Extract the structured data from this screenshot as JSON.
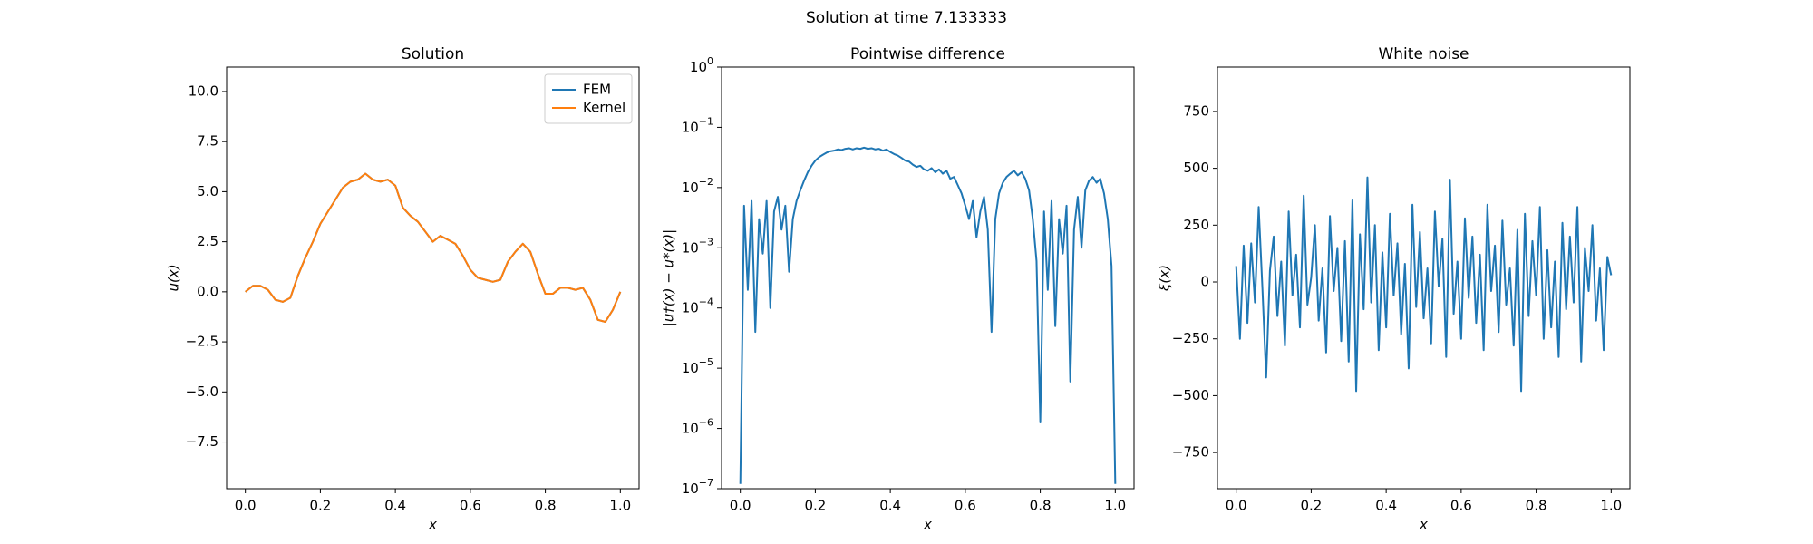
{
  "title": "Solution at time 7.133333",
  "chart_data": [
    {
      "type": "line",
      "title": "Solution",
      "xlabel": "x",
      "ylabel": "u(x)",
      "legend": "upper right",
      "xlim": [
        -0.05,
        1.05
      ],
      "ylim": [
        -9.83,
        11.22
      ],
      "xticks": [
        {
          "value": 0,
          "label": "0.0"
        },
        {
          "value": 0.2,
          "label": "0.2"
        },
        {
          "value": 0.4,
          "label": "0.4"
        },
        {
          "value": 0.6,
          "label": "0.6"
        },
        {
          "value": 0.8,
          "label": "0.8"
        },
        {
          "value": 1,
          "label": "1.0"
        }
      ],
      "yticks": [
        {
          "value": -7.5,
          "label": "−7.5"
        },
        {
          "value": -5,
          "label": "−5.0"
        },
        {
          "value": -2.5,
          "label": "−2.5"
        },
        {
          "value": 0,
          "label": "0.0"
        },
        2.5,
        {
          "value": 5,
          "label": "5.0"
        },
        7.5,
        {
          "value": 10,
          "label": "10.0"
        }
      ],
      "x": [
        0,
        0.02,
        0.04,
        0.06,
        0.08,
        0.1,
        0.12,
        0.14,
        0.16,
        0.18,
        0.2,
        0.22,
        0.24,
        0.26,
        0.28,
        0.3,
        0.32,
        0.34,
        0.36,
        0.38,
        0.4,
        0.42,
        0.44,
        0.46,
        0.48,
        0.5,
        0.52,
        0.54,
        0.56,
        0.58,
        0.6,
        0.62,
        0.64,
        0.66,
        0.68,
        0.7,
        0.72,
        0.74,
        0.76,
        0.78,
        0.8,
        0.82,
        0.84,
        0.86,
        0.88,
        0.9,
        0.92,
        0.94,
        0.96,
        0.98,
        1
      ],
      "series": [
        {
          "name": "FEM",
          "color": "#1f77b4",
          "values": [
            0,
            0.3,
            0.3,
            0.1,
            -0.4,
            -0.5,
            -0.3,
            0.8,
            1.7,
            2.5,
            3.4,
            4.0,
            4.6,
            5.2,
            5.5,
            5.6,
            5.9,
            5.6,
            5.5,
            5.6,
            5.3,
            4.2,
            3.8,
            3.5,
            3.0,
            2.5,
            2.8,
            2.6,
            2.4,
            1.8,
            1.1,
            0.7,
            0.6,
            0.5,
            0.6,
            1.5,
            2.0,
            2.4,
            2.0,
            0.9,
            -0.1,
            -0.1,
            0.2,
            0.2,
            0.1,
            0.2,
            -0.4,
            -1.4,
            -1.5,
            -0.9,
            0
          ]
        },
        {
          "name": "Kernel",
          "color": "#ff7f0e",
          "values": [
            0,
            0.3,
            0.3,
            0.1,
            -0.4,
            -0.5,
            -0.3,
            0.8,
            1.7,
            2.5,
            3.4,
            4.0,
            4.6,
            5.2,
            5.5,
            5.6,
            5.9,
            5.6,
            5.5,
            5.6,
            5.3,
            4.2,
            3.8,
            3.5,
            3.0,
            2.5,
            2.8,
            2.6,
            2.4,
            1.8,
            1.1,
            0.7,
            0.6,
            0.5,
            0.6,
            1.5,
            2.0,
            2.4,
            2.0,
            0.9,
            -0.1,
            -0.1,
            0.2,
            0.2,
            0.1,
            0.2,
            -0.4,
            -1.4,
            -1.5,
            -0.9,
            0
          ]
        }
      ]
    },
    {
      "type": "line",
      "title": "Pointwise difference",
      "xlabel": "x",
      "ylabel": "|u†(x) − u*(x)|",
      "log_y": true,
      "xlim": [
        -0.05,
        1.05
      ],
      "ylim": [
        1e-07,
        1
      ],
      "xticks": [
        {
          "value": 0,
          "label": "0.0"
        },
        {
          "value": 0.2,
          "label": "0.2"
        },
        {
          "value": 0.4,
          "label": "0.4"
        },
        {
          "value": 0.6,
          "label": "0.6"
        },
        {
          "value": 0.8,
          "label": "0.8"
        },
        {
          "value": 1,
          "label": "1.0"
        }
      ],
      "yticks": [
        {
          "value": 1e-07,
          "label": "10",
          "exponent": "−7"
        },
        {
          "value": 1e-06,
          "label": "10",
          "exponent": "−6"
        },
        {
          "value": 1e-05,
          "label": "10",
          "exponent": "−5"
        },
        {
          "value": 0.0001,
          "label": "10",
          "exponent": "−4"
        },
        {
          "value": 0.001,
          "label": "10",
          "exponent": "−3"
        },
        {
          "value": 0.01,
          "label": "10",
          "exponent": "−2"
        },
        {
          "value": 0.1,
          "label": "10",
          "exponent": "−1"
        },
        {
          "value": 1,
          "label": "10",
          "exponent": "0"
        }
      ],
      "x": [
        0,
        0.01,
        0.02,
        0.03,
        0.04,
        0.05,
        0.06,
        0.07,
        0.08,
        0.09,
        0.1,
        0.11,
        0.12,
        0.13,
        0.14,
        0.15,
        0.16,
        0.17,
        0.18,
        0.19,
        0.2,
        0.21,
        0.22,
        0.23,
        0.24,
        0.25,
        0.26,
        0.27,
        0.28,
        0.29,
        0.3,
        0.31,
        0.32,
        0.33,
        0.34,
        0.35,
        0.36,
        0.37,
        0.38,
        0.39,
        0.4,
        0.41,
        0.42,
        0.43,
        0.44,
        0.45,
        0.46,
        0.47,
        0.48,
        0.49,
        0.5,
        0.51,
        0.52,
        0.53,
        0.54,
        0.55,
        0.56,
        0.57,
        0.58,
        0.59,
        0.6,
        0.61,
        0.62,
        0.63,
        0.64,
        0.65,
        0.66,
        0.67,
        0.68,
        0.69,
        0.7,
        0.71,
        0.72,
        0.73,
        0.74,
        0.75,
        0.76,
        0.77,
        0.78,
        0.79,
        0.8,
        0.81,
        0.82,
        0.83,
        0.84,
        0.85,
        0.86,
        0.87,
        0.88,
        0.89,
        0.9,
        0.91,
        0.92,
        0.93,
        0.94,
        0.95,
        0.96,
        0.97,
        0.98,
        0.99,
        1
      ],
      "series": [
        {
          "name": "difference",
          "color": "#1f77b4",
          "values": [
            1.2e-07,
            0.005,
            0.0002,
            0.006,
            4e-05,
            0.003,
            0.0008,
            0.006,
            0.0001,
            0.004,
            0.007,
            0.002,
            0.005,
            0.0004,
            0.003,
            0.006,
            0.009,
            0.013,
            0.018,
            0.023,
            0.028,
            0.032,
            0.035,
            0.038,
            0.04,
            0.041,
            0.043,
            0.042,
            0.044,
            0.045,
            0.043,
            0.045,
            0.044,
            0.046,
            0.044,
            0.045,
            0.043,
            0.044,
            0.041,
            0.043,
            0.039,
            0.036,
            0.034,
            0.031,
            0.028,
            0.027,
            0.024,
            0.022,
            0.023,
            0.02,
            0.019,
            0.021,
            0.018,
            0.02,
            0.017,
            0.019,
            0.014,
            0.015,
            0.011,
            0.008,
            0.005,
            0.003,
            0.006,
            0.0015,
            0.004,
            0.007,
            0.002,
            4e-05,
            0.003,
            0.008,
            0.012,
            0.015,
            0.017,
            0.019,
            0.016,
            0.018,
            0.014,
            0.009,
            0.003,
            0.0006,
            1.3e-06,
            0.004,
            0.0002,
            0.006,
            5e-05,
            0.003,
            0.0008,
            0.005,
            6e-06,
            0.002,
            0.007,
            0.001,
            0.009,
            0.013,
            0.015,
            0.012,
            0.014,
            0.008,
            0.003,
            0.0005,
            1.2e-07
          ]
        }
      ]
    },
    {
      "type": "line",
      "title": "White noise",
      "xlabel": "x",
      "ylabel": "ξ(x)",
      "xlim": [
        -0.05,
        1.05
      ],
      "ylim": [
        -909,
        945
      ],
      "xticks": [
        {
          "value": 0,
          "label": "0.0"
        },
        {
          "value": 0.2,
          "label": "0.2"
        },
        {
          "value": 0.4,
          "label": "0.4"
        },
        {
          "value": 0.6,
          "label": "0.6"
        },
        {
          "value": 0.8,
          "label": "0.8"
        },
        {
          "value": 1,
          "label": "1.0"
        }
      ],
      "yticks": [
        {
          "value": -750,
          "label": "−750"
        },
        {
          "value": -500,
          "label": "−500"
        },
        {
          "value": -250,
          "label": "−250"
        },
        0,
        250,
        500,
        750
      ],
      "x": [
        0,
        0.01,
        0.02,
        0.03,
        0.04,
        0.05,
        0.06,
        0.07,
        0.08,
        0.09,
        0.1,
        0.11,
        0.12,
        0.13,
        0.14,
        0.15,
        0.16,
        0.17,
        0.18,
        0.19,
        0.2,
        0.21,
        0.22,
        0.23,
        0.24,
        0.25,
        0.26,
        0.27,
        0.28,
        0.29,
        0.3,
        0.31,
        0.32,
        0.33,
        0.34,
        0.35,
        0.36,
        0.37,
        0.38,
        0.39,
        0.4,
        0.41,
        0.42,
        0.43,
        0.44,
        0.45,
        0.46,
        0.47,
        0.48,
        0.49,
        0.5,
        0.51,
        0.52,
        0.53,
        0.54,
        0.55,
        0.56,
        0.57,
        0.58,
        0.59,
        0.6,
        0.61,
        0.62,
        0.63,
        0.64,
        0.65,
        0.66,
        0.67,
        0.68,
        0.69,
        0.7,
        0.71,
        0.72,
        0.73,
        0.74,
        0.75,
        0.76,
        0.77,
        0.78,
        0.79,
        0.8,
        0.81,
        0.82,
        0.83,
        0.84,
        0.85,
        0.86,
        0.87,
        0.88,
        0.89,
        0.9,
        0.91,
        0.92,
        0.93,
        0.94,
        0.95,
        0.96,
        0.97,
        0.98,
        0.99,
        1
      ],
      "series": [
        {
          "name": "noise",
          "color": "#1f77b4",
          "values": [
            70,
            -250,
            160,
            -180,
            170,
            -90,
            330,
            -30,
            -420,
            50,
            200,
            -150,
            90,
            -280,
            310,
            -60,
            120,
            -200,
            380,
            -100,
            20,
            250,
            -170,
            60,
            -310,
            290,
            -40,
            150,
            -260,
            180,
            -350,
            360,
            -480,
            210,
            -120,
            460,
            -90,
            250,
            -300,
            130,
            -200,
            300,
            -60,
            170,
            -230,
            80,
            -380,
            340,
            -110,
            220,
            -160,
            60,
            -270,
            310,
            -20,
            190,
            -330,
            450,
            -140,
            90,
            -250,
            280,
            -70,
            200,
            -180,
            120,
            -300,
            340,
            -40,
            160,
            -220,
            270,
            -100,
            60,
            -280,
            230,
            -480,
            300,
            -150,
            180,
            -60,
            330,
            -250,
            140,
            -200,
            90,
            -330,
            260,
            -120,
            200,
            -90,
            330,
            -350,
            150,
            -40,
            250,
            -170,
            60,
            -300,
            110,
            30
          ]
        }
      ]
    }
  ]
}
